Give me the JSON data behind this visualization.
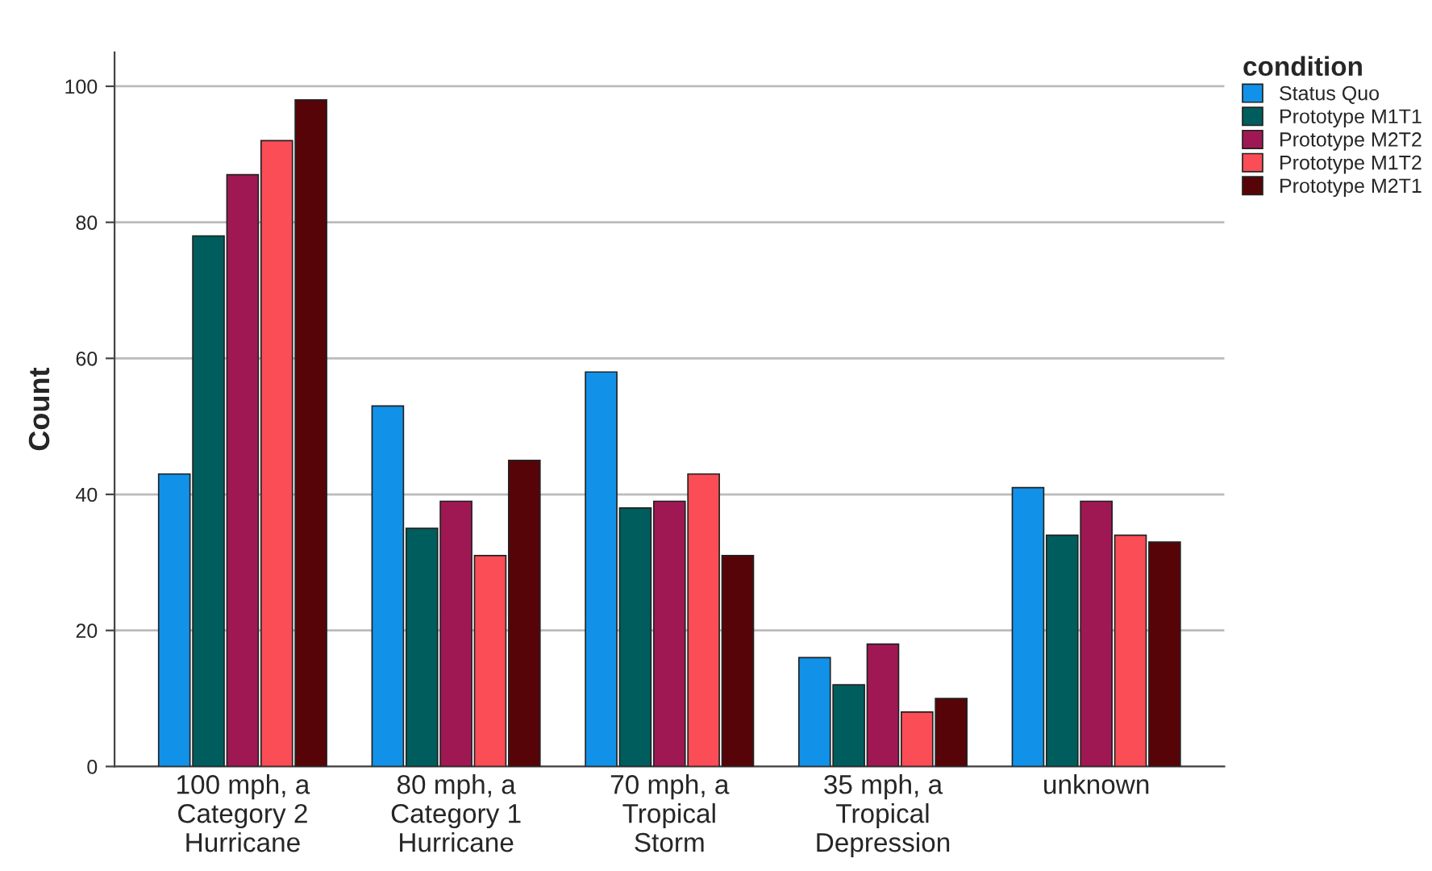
{
  "chart_data": {
    "type": "bar",
    "ylabel": "Count",
    "legend_title": "condition",
    "categories": [
      "100 mph, a\nCategory 2\nHurricane",
      "80 mph, a\nCategory 1\nHurricane",
      "70 mph, a\nTropical\nStorm",
      "35 mph, a\nTropical\nDepression",
      "unknown"
    ],
    "series": [
      {
        "name": "Status Quo",
        "color": "#1192e8",
        "values": [
          43,
          53,
          58,
          16,
          41
        ]
      },
      {
        "name": "Prototype M1T1",
        "color": "#005d5d",
        "values": [
          78,
          35,
          38,
          12,
          34
        ]
      },
      {
        "name": "Prototype M2T2",
        "color": "#9f1853",
        "values": [
          87,
          39,
          39,
          18,
          39
        ]
      },
      {
        "name": "Prototype M1T2",
        "color": "#fa4d56",
        "values": [
          92,
          31,
          43,
          8,
          34
        ]
      },
      {
        "name": "Prototype M2T1",
        "color": "#570408",
        "values": [
          98,
          45,
          31,
          10,
          33
        ]
      }
    ],
    "ylim": [
      0,
      105
    ],
    "yticks": [
      0,
      20,
      40,
      60,
      80,
      100
    ],
    "grid": "y",
    "legend": "top right"
  }
}
